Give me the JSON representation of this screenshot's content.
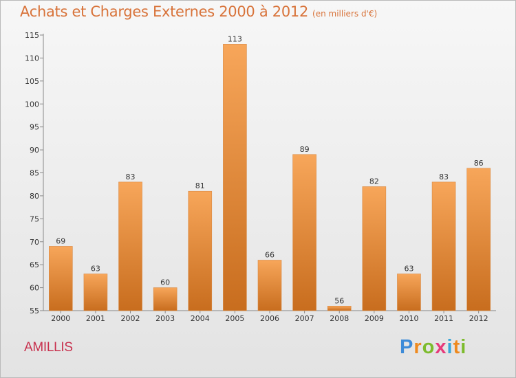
{
  "header": {
    "title": "Achats et Charges Externes 2000 à 2012",
    "subtitle": "(en milliers d'€)"
  },
  "footer": {
    "commune": "AMILLIS",
    "logo": [
      "P",
      "r",
      "o",
      "x",
      "i",
      "t",
      "i"
    ]
  },
  "colors": {
    "bar_top": "#f7a65a",
    "bar_bottom": "#c86d1e",
    "title": "#d8733a",
    "commune": "#c8314e"
  },
  "chart_data": {
    "type": "bar",
    "title": "Achats et Charges Externes 2000 à 2012",
    "subtitle": "(en milliers d'€)",
    "categories": [
      "2000",
      "2001",
      "2002",
      "2003",
      "2004",
      "2005",
      "2006",
      "2007",
      "2008",
      "2009",
      "2010",
      "2011",
      "2012"
    ],
    "values": [
      69,
      63,
      83,
      60,
      81,
      113,
      66,
      89,
      56,
      82,
      63,
      83,
      86
    ],
    "ylim": [
      55,
      115
    ],
    "yticks": [
      55,
      60,
      65,
      70,
      75,
      80,
      85,
      90,
      95,
      100,
      105,
      110,
      115
    ],
    "grid": false,
    "data_labels": true
  }
}
